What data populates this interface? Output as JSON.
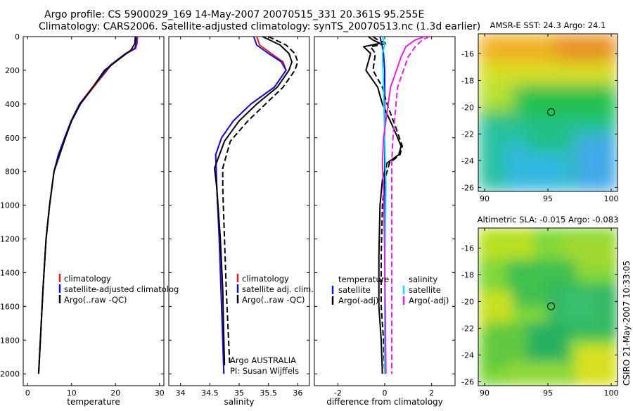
{
  "header": {
    "line1": "Argo profile: CS 5900029_169 14-May-2007 20070515_331 20.361S 95.255E",
    "line2": "Climatology: CARS2006. Satellite-adjusted climatology: synTS_20070513.nc (1.3d earlier)"
  },
  "side_text": "CSIRO 21-May-2007 10:33:05",
  "colors": {
    "climatology": "#e02020",
    "satellite": "#1010d0",
    "argo": "#000000",
    "cyan": "#10e0e0",
    "magenta": "#e020e0"
  },
  "chart_data": [
    {
      "id": "temperature",
      "type": "line",
      "xlabel": "temperature",
      "ylabel": "",
      "xlim": [
        -1,
        31
      ],
      "ylim": [
        2070,
        0
      ],
      "y_inverted": true,
      "xticks": [
        0,
        10,
        20,
        30
      ],
      "yticks": [
        0,
        200,
        400,
        600,
        800,
        1000,
        1200,
        1400,
        1600,
        1800,
        2000
      ],
      "legend": [
        "climatology",
        "satellite-adjusted climatolog",
        "Argo(..raw -QC)"
      ],
      "series": [
        {
          "name": "climatology",
          "color": "red",
          "style": "solid",
          "x": [
            25.0,
            24.9,
            24.6,
            22.5,
            19,
            15,
            12,
            10,
            8.5,
            7,
            6,
            5,
            4.2,
            3.5,
            2.9,
            2.5
          ],
          "y": [
            0,
            40,
            70,
            100,
            170,
            300,
            400,
            500,
            600,
            700,
            800,
            1000,
            1200,
            1500,
            1800,
            2000
          ]
        },
        {
          "name": "satellite-adjusted climatolog",
          "color": "blue",
          "style": "solid",
          "x": [
            24.8,
            24.7,
            24.4,
            22.3,
            18.8,
            14.8,
            11.8,
            9.9,
            8.4,
            7,
            6,
            5,
            4.2,
            3.5,
            2.9,
            2.5
          ],
          "y": [
            0,
            40,
            70,
            100,
            170,
            300,
            400,
            500,
            600,
            700,
            800,
            1000,
            1200,
            1500,
            1800,
            2000
          ]
        },
        {
          "name": "Argo(..raw -QC)",
          "color": "black",
          "style": "solid",
          "x": [
            24.5,
            24.4,
            23.5,
            21,
            17.5,
            14.8,
            12,
            10,
            8.6,
            7.3,
            6,
            5,
            4.2,
            3.5,
            2.9,
            2.5
          ],
          "y": [
            0,
            40,
            80,
            130,
            200,
            300,
            400,
            500,
            600,
            700,
            800,
            1000,
            1200,
            1500,
            1800,
            2000
          ]
        }
      ]
    },
    {
      "id": "salinity",
      "type": "line",
      "xlabel": "salinity",
      "ylabel": "",
      "xlim": [
        33.8,
        36.2
      ],
      "ylim": [
        2070,
        0
      ],
      "y_inverted": true,
      "xticks": [
        34,
        34.5,
        35,
        35.5,
        36
      ],
      "xtick_labels": [
        "34",
        "34.5",
        "35",
        "35.5",
        "36"
      ],
      "yticks": [
        0,
        200,
        400,
        600,
        800,
        1000,
        1200,
        1400,
        1600,
        1800,
        2000
      ],
      "legend": [
        "climatology",
        "satellite adj. clim.",
        "Argo(..raw -QC)"
      ],
      "annotation": [
        "Argo AUSTRALIA",
        "PI: Susan Wijffels"
      ],
      "series": [
        {
          "name": "climatology",
          "color": "red",
          "style": "solid",
          "x": [
            35.3,
            35.35,
            35.55,
            35.75,
            35.8,
            35.6,
            35.2,
            34.9,
            34.7,
            34.6,
            34.62,
            34.66,
            34.69,
            34.72,
            34.74
          ],
          "y": [
            0,
            50,
            100,
            150,
            200,
            300,
            400,
            500,
            600,
            700,
            900,
            1200,
            1500,
            1800,
            2000
          ]
        },
        {
          "name": "satellite adj. clim.",
          "color": "blue",
          "style": "solid",
          "x": [
            35.25,
            35.3,
            35.5,
            35.72,
            35.8,
            35.6,
            35.2,
            34.9,
            34.7,
            34.6,
            34.62,
            34.66,
            34.69,
            34.72,
            34.74
          ],
          "y": [
            0,
            50,
            100,
            150,
            200,
            300,
            400,
            500,
            600,
            700,
            900,
            1200,
            1500,
            1800,
            2000
          ]
        },
        {
          "name": "Argo(..raw -QC)",
          "color": "black",
          "style": "solid",
          "x": [
            35.4,
            35.7,
            35.85,
            35.9,
            35.85,
            35.65,
            35.3,
            35.0,
            34.75,
            34.58,
            34.62,
            34.68,
            34.72,
            34.74,
            34.75
          ],
          "y": [
            0,
            50,
            100,
            150,
            200,
            300,
            400,
            500,
            620,
            780,
            900,
            1200,
            1500,
            1800,
            1950
          ]
        },
        {
          "name": "Argo(..raw -QC) adj",
          "color": "black",
          "style": "dash",
          "x": [
            35.5,
            35.8,
            35.95,
            36.0,
            35.95,
            35.75,
            35.45,
            35.15,
            34.85,
            34.72,
            34.72,
            34.75,
            34.78,
            34.82,
            34.84
          ],
          "y": [
            0,
            50,
            100,
            150,
            200,
            300,
            400,
            500,
            620,
            780,
            900,
            1200,
            1500,
            1800,
            1950
          ]
        }
      ]
    },
    {
      "id": "difference",
      "type": "line",
      "xlabel": "difference from climatology",
      "ylabel": "",
      "xlim": [
        -3,
        3
      ],
      "ylim": [
        2070,
        0
      ],
      "y_inverted": true,
      "xticks": [
        -2,
        0,
        2
      ],
      "yticks": [
        0,
        200,
        400,
        600,
        800,
        1000,
        1200,
        1400,
        1600,
        1800,
        2000
      ],
      "legend_left": {
        "title": "temperature",
        "items": [
          "satellite",
          "Argo(-adj)"
        ]
      },
      "legend_right": {
        "title": "salinity",
        "items": [
          "satellite",
          "Argo(-adj)"
        ]
      },
      "series": [
        {
          "name": "temperature satellite",
          "color": "blue",
          "style": "solid",
          "x": [
            -0.2,
            -0.15,
            -0.1,
            -0.05,
            0,
            0
          ],
          "y": [
            0,
            30,
            60,
            100,
            200,
            2000
          ]
        },
        {
          "name": "temperature Argo",
          "color": "black",
          "style": "solid",
          "x": [
            -0.7,
            -0.5,
            -0.2,
            -0.9,
            -0.6,
            -0.8,
            -0.3,
            -0.1,
            0.4,
            0.7,
            0.6,
            0.1,
            -0.1,
            -0.2,
            -0.25,
            -0.25,
            -0.15,
            -0.1
          ],
          "y": [
            0,
            20,
            40,
            60,
            100,
            200,
            300,
            400,
            550,
            650,
            700,
            750,
            850,
            1000,
            1300,
            1600,
            1800,
            2000
          ]
        },
        {
          "name": "temperature Argo adj",
          "color": "black",
          "style": "dash",
          "x": [
            -0.5,
            -0.3,
            0.1,
            -0.6,
            -0.4,
            -0.5,
            -0.1,
            0.1,
            0.5,
            0.75,
            0.65,
            0.2,
            0.0,
            -0.1,
            -0.15,
            -0.15,
            -0.05,
            0
          ],
          "y": [
            0,
            20,
            40,
            60,
            100,
            200,
            300,
            400,
            550,
            650,
            700,
            750,
            850,
            1000,
            1300,
            1600,
            1800,
            2000
          ]
        },
        {
          "name": "salinity satellite",
          "color": "cyan",
          "style": "solid",
          "x": [
            -0.1,
            0.0,
            -0.1,
            -0.05,
            0,
            0.05,
            0.0,
            0.0
          ],
          "y": [
            0,
            50,
            100,
            300,
            600,
            900,
            1400,
            2000
          ]
        },
        {
          "name": "salinity Argo",
          "color": "magenta",
          "style": "solid",
          "x": [
            1.7,
            1.3,
            0.9,
            0.7,
            0.5,
            0.25,
            0.1,
            -0.05,
            -0.1,
            -0.05,
            0.0,
            0.05
          ],
          "y": [
            0,
            20,
            60,
            120,
            200,
            300,
            450,
            600,
            750,
            900,
            1300,
            2000
          ]
        },
        {
          "name": "salinity Argo adj",
          "color": "magenta",
          "style": "dash",
          "x": [
            1.9,
            1.6,
            1.3,
            1.0,
            0.8,
            0.55,
            0.45,
            0.35,
            0.3,
            0.3,
            0.3,
            0.3
          ],
          "y": [
            0,
            20,
            60,
            120,
            200,
            300,
            450,
            600,
            750,
            900,
            1300,
            2000
          ]
        }
      ]
    },
    {
      "id": "sst_map",
      "type": "heatmap",
      "title": "AMSR-E SST: 24.3 Argo: 24.1",
      "xlim": [
        89.5,
        100.5
      ],
      "ylim": [
        -26.3,
        -14.5
      ],
      "xticks": [
        90,
        95,
        100
      ],
      "yticks": [
        -16,
        -18,
        -20,
        -22,
        -24,
        -26
      ],
      "marker": {
        "lon": 95.255,
        "lat": -20.361
      }
    },
    {
      "id": "sla_map",
      "type": "heatmap",
      "title": "Altimetric SLA: -0.015 Argo: -0.083",
      "xlim": [
        89.5,
        100.5
      ],
      "ylim": [
        -26.3,
        -14.5
      ],
      "xticks": [
        90,
        95,
        100
      ],
      "yticks": [
        -16,
        -18,
        -20,
        -22,
        -24,
        -26
      ],
      "marker": {
        "lon": 95.255,
        "lat": -20.361
      }
    }
  ]
}
